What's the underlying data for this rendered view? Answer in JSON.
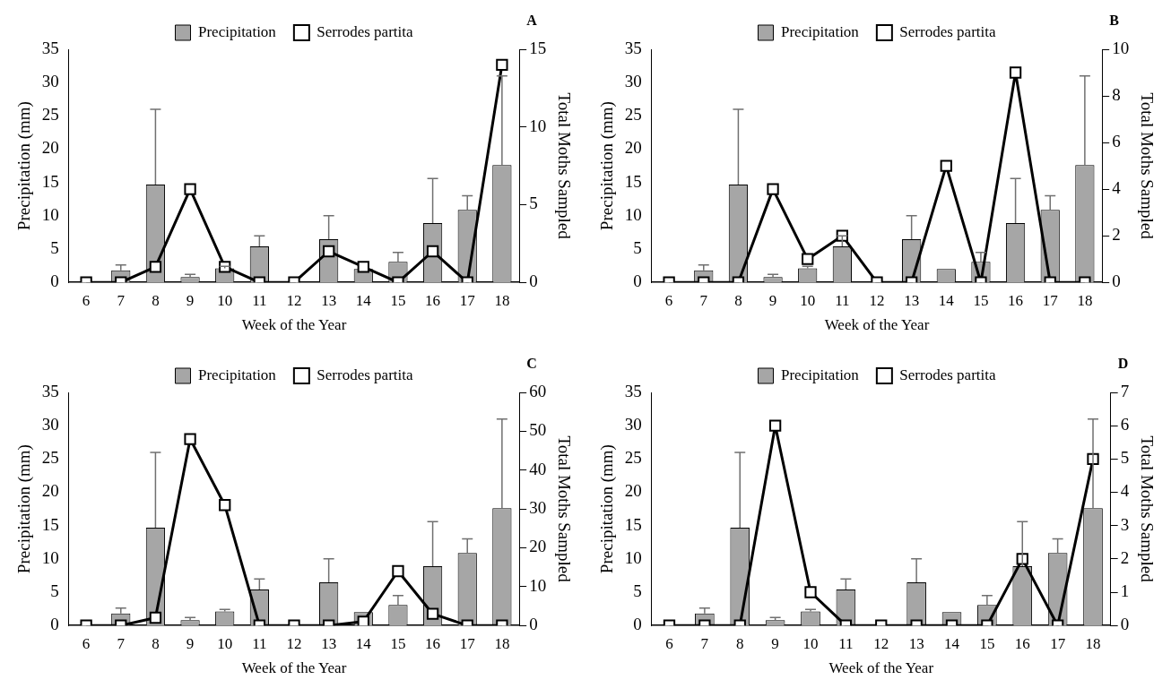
{
  "chart_data": [
    {
      "type": "bar",
      "title": "A",
      "xlabel": "Week of the Year",
      "ylabel": "Precipitation (mm)",
      "y2label": "Total Moths Sampled",
      "categories": [
        "6",
        "7",
        "8",
        "9",
        "10",
        "11",
        "12",
        "13",
        "14",
        "15",
        "16",
        "17",
        "18"
      ],
      "legend": "top",
      "grid": false,
      "marker": "square",
      "ylim": [
        0,
        35
      ],
      "yticks": [
        0,
        5,
        10,
        15,
        20,
        25,
        30,
        35
      ],
      "y2lim": [
        0,
        15
      ],
      "y2ticks": [
        0,
        5,
        10,
        15
      ],
      "series": [
        {
          "name": "Precipitation",
          "color": "#a6a6a6",
          "values": [
            0,
            1.8,
            14.7,
            0.8,
            2.1,
            5.4,
            0,
            6.5,
            2,
            3.1,
            8.9,
            10.9,
            17.6
          ],
          "errors": [
            null,
            [
              1.8,
              2.6
            ],
            [
              14.7,
              26
            ],
            [
              0.8,
              1.2
            ],
            [
              2.1,
              2.4
            ],
            [
              5.4,
              7
            ],
            null,
            [
              6.5,
              10
            ],
            null,
            [
              3.1,
              4.5
            ],
            [
              8.9,
              15.6
            ],
            [
              10.9,
              13
            ],
            [
              17.6,
              31
            ]
          ]
        },
        {
          "name": "Serrodes partita",
          "type": "line",
          "axis": "y2",
          "color": "#000000",
          "values": [
            0,
            0,
            1,
            6,
            1,
            0,
            0,
            2,
            1,
            0,
            2,
            0,
            14
          ]
        }
      ]
    },
    {
      "type": "bar",
      "title": "B",
      "xlabel": "Week of the Year",
      "ylabel": "Precipitation (mm)",
      "y2label": "Total Moths Sampled",
      "categories": [
        "6",
        "7",
        "8",
        "9",
        "10",
        "11",
        "12",
        "13",
        "14",
        "15",
        "16",
        "17",
        "18"
      ],
      "legend": "top",
      "grid": false,
      "marker": "square",
      "ylim": [
        0,
        35
      ],
      "yticks": [
        0,
        5,
        10,
        15,
        20,
        25,
        30,
        35
      ],
      "y2lim": [
        0,
        10
      ],
      "y2ticks": [
        0,
        2,
        4,
        6,
        8,
        10
      ],
      "series": [
        {
          "name": "Precipitation",
          "color": "#a6a6a6",
          "values": [
            0,
            1.8,
            14.7,
            0.8,
            2.1,
            5.4,
            0,
            6.5,
            2,
            3.1,
            8.9,
            10.9,
            17.6
          ],
          "errors": [
            null,
            [
              1.8,
              2.6
            ],
            [
              14.7,
              26
            ],
            [
              0.8,
              1.2
            ],
            [
              2.1,
              2.4
            ],
            [
              5.4,
              7
            ],
            null,
            [
              6.5,
              10
            ],
            null,
            [
              3.1,
              4.5
            ],
            [
              8.9,
              15.6
            ],
            [
              10.9,
              13
            ],
            [
              17.6,
              31
            ]
          ]
        },
        {
          "name": "Serrodes partita",
          "type": "line",
          "axis": "y2",
          "color": "#000000",
          "values": [
            0,
            0,
            0,
            4,
            1,
            2,
            0,
            0,
            5,
            0,
            9,
            0,
            0
          ]
        }
      ]
    },
    {
      "type": "bar",
      "title": "C",
      "xlabel": "Week of the Year",
      "ylabel": "Precipitation (mm)",
      "y2label": "Total Moths Sampled",
      "categories": [
        "6",
        "7",
        "8",
        "9",
        "10",
        "11",
        "12",
        "13",
        "14",
        "15",
        "16",
        "17",
        "18"
      ],
      "legend": "top",
      "grid": false,
      "marker": "square",
      "ylim": [
        0,
        35
      ],
      "yticks": [
        0,
        5,
        10,
        15,
        20,
        25,
        30,
        35
      ],
      "y2lim": [
        0,
        60
      ],
      "y2ticks": [
        0,
        10,
        20,
        30,
        40,
        50,
        60
      ],
      "series": [
        {
          "name": "Precipitation",
          "color": "#a6a6a6",
          "values": [
            0,
            1.8,
            14.7,
            0.8,
            2.1,
            5.4,
            0,
            6.5,
            2,
            3.1,
            8.9,
            10.9,
            17.6
          ],
          "errors": [
            null,
            [
              1.8,
              2.6
            ],
            [
              14.7,
              26
            ],
            [
              0.8,
              1.2
            ],
            [
              2.1,
              2.4
            ],
            [
              5.4,
              7
            ],
            null,
            [
              6.5,
              10
            ],
            null,
            [
              3.1,
              4.5
            ],
            [
              8.9,
              15.6
            ],
            [
              10.9,
              13
            ],
            [
              17.6,
              31
            ]
          ]
        },
        {
          "name": "Serrodes partita",
          "type": "line",
          "axis": "y2",
          "color": "#000000",
          "values": [
            0,
            0,
            2,
            48,
            31,
            0,
            0,
            0,
            1,
            14,
            3,
            0,
            0
          ]
        }
      ]
    },
    {
      "type": "bar",
      "title": "D",
      "xlabel": "Week of the Year",
      "ylabel": "Precipitation (mm)",
      "y2label": "Total Moths Sampled",
      "categories": [
        "6",
        "7",
        "8",
        "9",
        "10",
        "11",
        "12",
        "13",
        "14",
        "15",
        "16",
        "17",
        "18"
      ],
      "legend": "top",
      "grid": false,
      "marker": "square",
      "ylim": [
        0,
        35
      ],
      "yticks": [
        0,
        5,
        10,
        15,
        20,
        25,
        30,
        35
      ],
      "y2lim": [
        0,
        7
      ],
      "y2ticks": [
        0,
        1,
        2,
        3,
        4,
        5,
        6,
        7
      ],
      "series": [
        {
          "name": "Precipitation",
          "color": "#a6a6a6",
          "values": [
            0,
            1.8,
            14.7,
            0.8,
            2.1,
            5.4,
            0,
            6.5,
            2,
            3.1,
            8.9,
            10.9,
            17.6
          ],
          "errors": [
            null,
            [
              1.8,
              2.6
            ],
            [
              14.7,
              26
            ],
            [
              0.8,
              1.2
            ],
            [
              2.1,
              2.4
            ],
            [
              5.4,
              7
            ],
            null,
            [
              6.5,
              10
            ],
            null,
            [
              3.1,
              4.5
            ],
            [
              8.9,
              15.6
            ],
            [
              10.9,
              13
            ],
            [
              17.6,
              31
            ]
          ]
        },
        {
          "name": "Serrodes partita",
          "type": "line",
          "axis": "y2",
          "color": "#000000",
          "values": [
            0,
            0,
            0,
            6,
            1,
            0,
            0,
            0,
            0,
            0,
            2,
            0,
            5
          ]
        }
      ]
    }
  ]
}
